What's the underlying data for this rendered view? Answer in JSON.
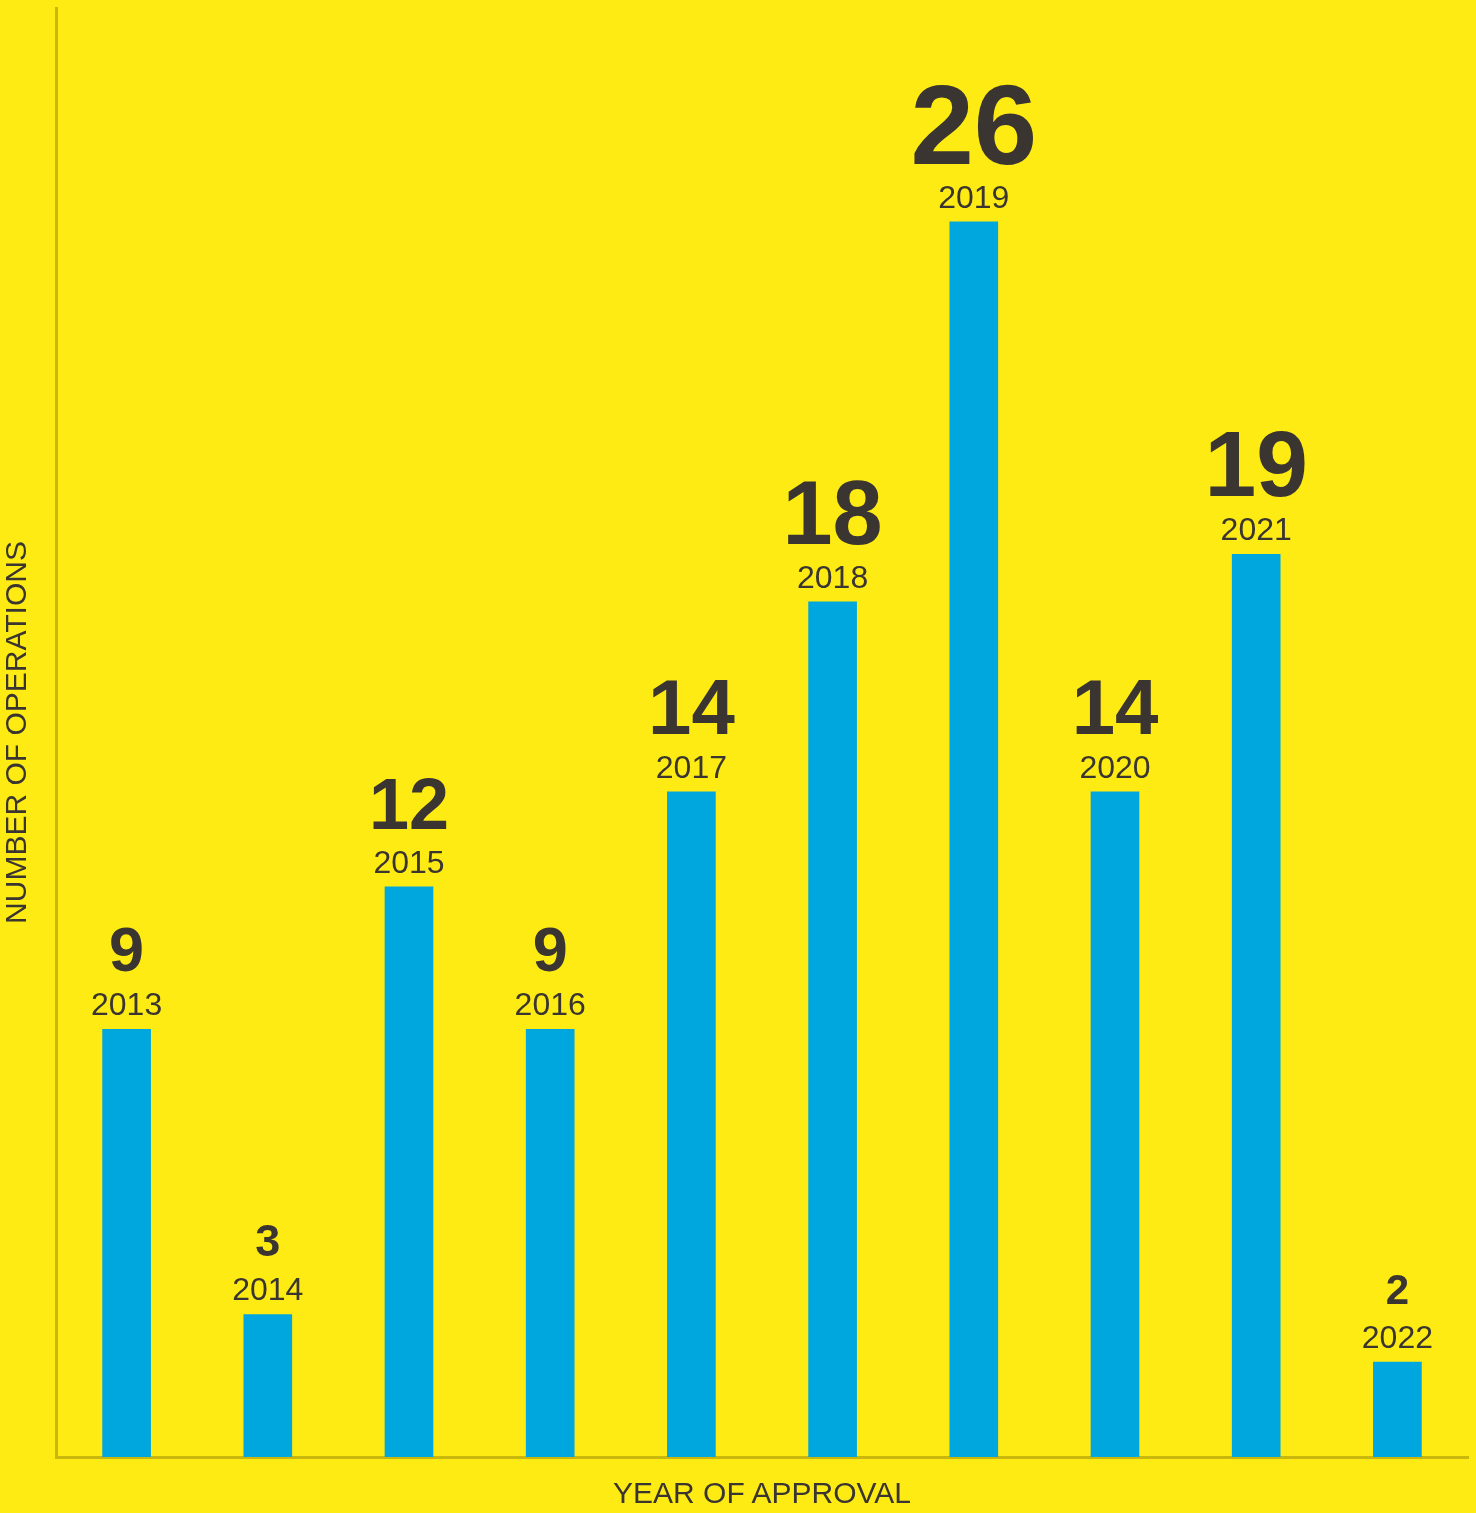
{
  "chart_data": {
    "type": "bar",
    "xlabel": "YEAR OF APPROVAL",
    "ylabel": "NUMBER OF OPERATIONS",
    "categories": [
      "2013",
      "2014",
      "2015",
      "2016",
      "2017",
      "2018",
      "2019",
      "2020",
      "2021",
      "2022"
    ],
    "values": [
      9,
      3,
      12,
      9,
      14,
      18,
      26,
      14,
      19,
      2
    ],
    "color": "#00a6de",
    "ylim": [
      0,
      30.5
    ],
    "data_labels": true,
    "grid": false,
    "legend": false,
    "tick_labels": "x"
  }
}
